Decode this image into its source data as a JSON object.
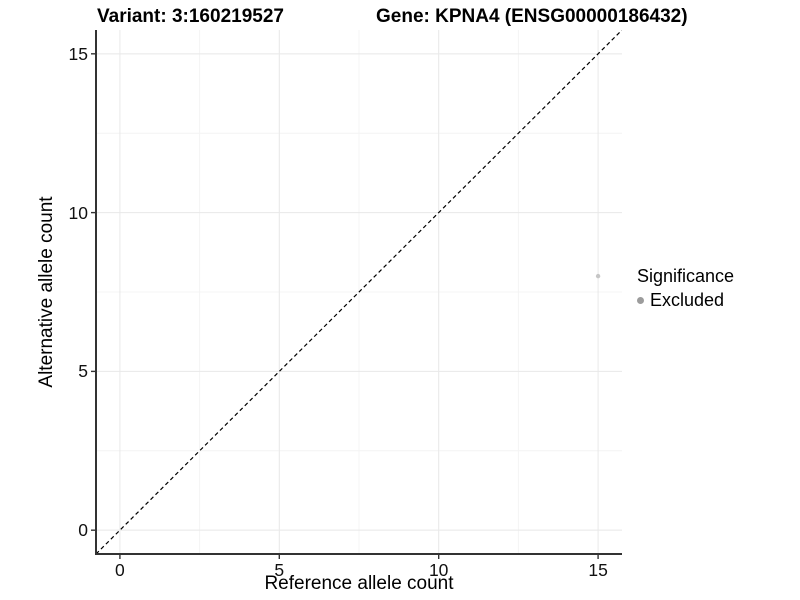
{
  "colors": {
    "axis_line": "#333333",
    "tick_mark": "#333333",
    "grid_major": "#e8e8e8",
    "grid_minor": "#f4f4f4",
    "point": "#c6c6c6",
    "legend_dot": "#9c9c9c",
    "reference_line": "#000000",
    "background": "#ffffff"
  },
  "chart_data": {
    "type": "scatter",
    "title_left": "Variant: 3:160219527",
    "title_right": "Gene: KPNA4 (ENSG00000186432)",
    "xlabel": "Reference allele count",
    "ylabel": "Alternative allele count",
    "xlim": [
      -0.75,
      15.75
    ],
    "ylim": [
      -0.75,
      15.75
    ],
    "x_ticks": [
      0,
      5,
      10,
      15
    ],
    "y_ticks": [
      0,
      5,
      10,
      15
    ],
    "grid": {
      "major": true,
      "minor": true
    },
    "reference_line": {
      "kind": "identity y=x",
      "style": "dashed"
    },
    "legend": {
      "title": "Significance",
      "position": "right",
      "items": [
        {
          "label": "Excluded"
        }
      ]
    },
    "series": [
      {
        "name": "Excluded",
        "points": [
          {
            "x": 15,
            "y": 8
          }
        ]
      }
    ]
  }
}
